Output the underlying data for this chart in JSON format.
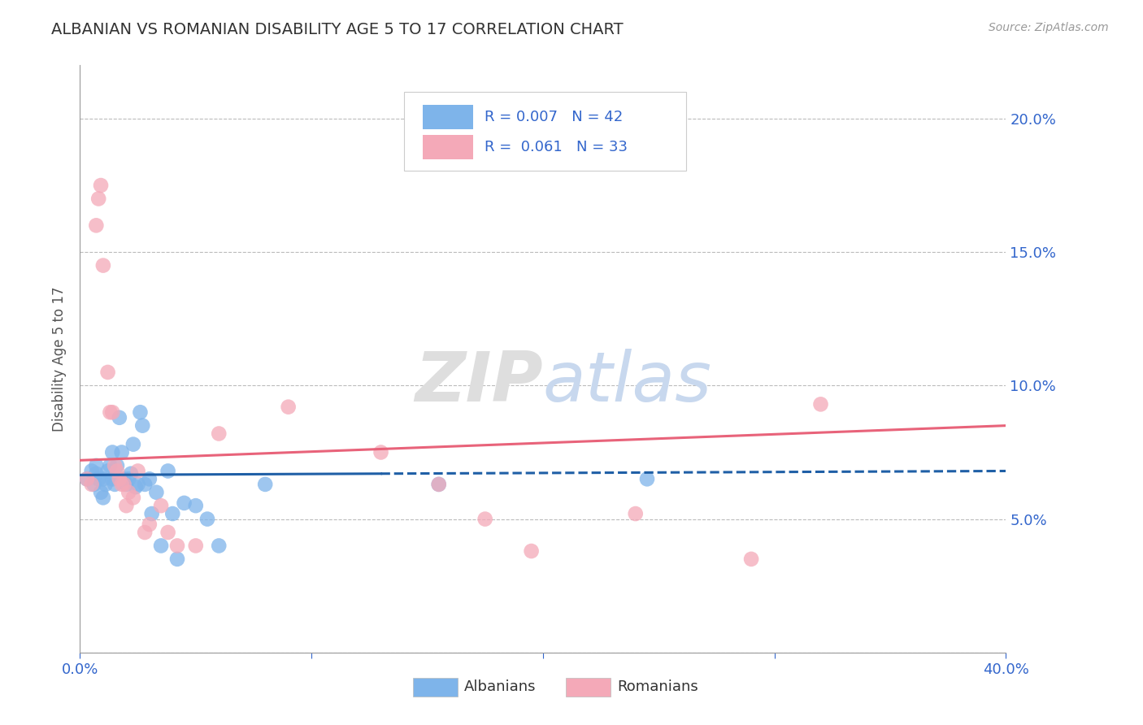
{
  "title": "ALBANIAN VS ROMANIAN DISABILITY AGE 5 TO 17 CORRELATION CHART",
  "source": "Source: ZipAtlas.com",
  "ylabel": "Disability Age 5 to 17",
  "xlim": [
    0.0,
    0.4
  ],
  "ylim": [
    0.0,
    0.22
  ],
  "xticks": [
    0.0,
    0.1,
    0.2,
    0.3,
    0.4
  ],
  "xticklabels": [
    "0.0%",
    "",
    "",
    "",
    "40.0%"
  ],
  "yticks": [
    0.0,
    0.05,
    0.1,
    0.15,
    0.2
  ],
  "yticklabels": [
    "",
    "5.0%",
    "10.0%",
    "15.0%",
    "20.0%"
  ],
  "albanian_color": "#7EB4EA",
  "romanian_color": "#F4A9B8",
  "albanian_line_color": "#1F5FA6",
  "romanian_line_color": "#E8637A",
  "grid_color": "#BBBBBB",
  "legend_R_albanian": "0.007",
  "legend_N_albanian": "42",
  "legend_R_romanian": "0.061",
  "legend_N_romanian": "33",
  "albanian_x": [
    0.003,
    0.005,
    0.006,
    0.007,
    0.007,
    0.008,
    0.009,
    0.01,
    0.01,
    0.011,
    0.012,
    0.013,
    0.014,
    0.014,
    0.015,
    0.016,
    0.017,
    0.018,
    0.019,
    0.02,
    0.021,
    0.022,
    0.023,
    0.024,
    0.025,
    0.026,
    0.027,
    0.028,
    0.03,
    0.031,
    0.033,
    0.035,
    0.038,
    0.04,
    0.042,
    0.045,
    0.05,
    0.055,
    0.06,
    0.08,
    0.155,
    0.245
  ],
  "albanian_y": [
    0.065,
    0.068,
    0.063,
    0.067,
    0.07,
    0.065,
    0.06,
    0.058,
    0.065,
    0.063,
    0.068,
    0.07,
    0.075,
    0.065,
    0.063,
    0.07,
    0.088,
    0.075,
    0.065,
    0.063,
    0.065,
    0.067,
    0.078,
    0.062,
    0.063,
    0.09,
    0.085,
    0.063,
    0.065,
    0.052,
    0.06,
    0.04,
    0.068,
    0.052,
    0.035,
    0.056,
    0.055,
    0.05,
    0.04,
    0.063,
    0.063,
    0.065
  ],
  "romanian_x": [
    0.003,
    0.005,
    0.007,
    0.008,
    0.009,
    0.01,
    0.012,
    0.013,
    0.014,
    0.015,
    0.016,
    0.017,
    0.018,
    0.019,
    0.02,
    0.021,
    0.023,
    0.025,
    0.028,
    0.03,
    0.035,
    0.038,
    0.042,
    0.05,
    0.06,
    0.09,
    0.13,
    0.155,
    0.175,
    0.195,
    0.24,
    0.29,
    0.32
  ],
  "romanian_y": [
    0.065,
    0.063,
    0.16,
    0.17,
    0.175,
    0.145,
    0.105,
    0.09,
    0.09,
    0.07,
    0.068,
    0.065,
    0.063,
    0.063,
    0.055,
    0.06,
    0.058,
    0.068,
    0.045,
    0.048,
    0.055,
    0.045,
    0.04,
    0.04,
    0.082,
    0.092,
    0.075,
    0.063,
    0.05,
    0.038,
    0.052,
    0.035,
    0.093
  ],
  "background_color": "#FFFFFF",
  "watermark_color": "#DEDEDE",
  "title_fontsize": 14,
  "tick_fontsize": 13,
  "ylabel_fontsize": 12
}
